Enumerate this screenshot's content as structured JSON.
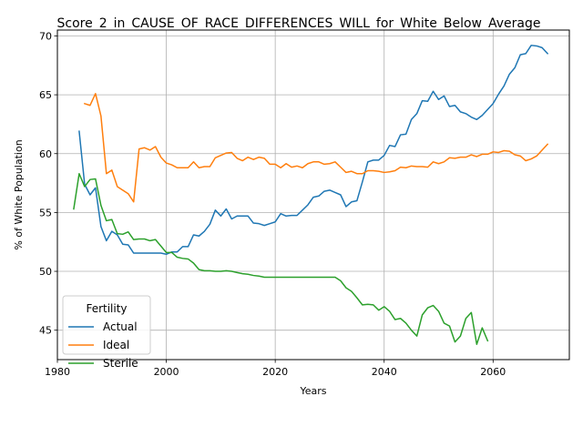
{
  "chart_data": {
    "type": "line",
    "title": "Score_2_in_CAUSE_OF_RACE_DIFFERENCES_WILL_for_White_Below_Average",
    "xlabel": "Years",
    "ylabel": "% of White Population",
    "xlim": [
      1980,
      2074
    ],
    "ylim": [
      42.5,
      70.5
    ],
    "xticks": [
      1980,
      2000,
      2020,
      2040,
      2060
    ],
    "yticks": [
      45,
      50,
      55,
      60,
      65,
      70
    ],
    "grid": true,
    "legend": {
      "title": "Fertility",
      "position": "lower-left"
    },
    "colors": {
      "Actual": "#1f77b4",
      "Ideal": "#ff7f0e",
      "Sterile": "#2ca02c"
    },
    "series": [
      {
        "name": "Actual",
        "x": [
          1984,
          1985,
          1986,
          1987,
          1988,
          1989,
          1990,
          1991,
          1992,
          1993,
          1994,
          1995,
          1996,
          1997,
          1998,
          1999,
          2000,
          2001,
          2002,
          2003,
          2004,
          2005,
          2006,
          2007,
          2008,
          2009,
          2010,
          2011,
          2012,
          2013,
          2014,
          2015,
          2016,
          2017,
          2018,
          2019,
          2020,
          2021,
          2022,
          2023,
          2024,
          2025,
          2026,
          2027,
          2028,
          2029,
          2030,
          2031,
          2032,
          2033,
          2034,
          2035,
          2036,
          2037,
          2038,
          2039,
          2040,
          2041,
          2042,
          2043,
          2044,
          2045,
          2046,
          2047,
          2048,
          2049,
          2050,
          2051,
          2052,
          2053,
          2054,
          2055,
          2056,
          2057,
          2058,
          2059,
          2060,
          2061,
          2062,
          2063,
          2064,
          2065,
          2066,
          2067,
          2068,
          2069,
          2070
        ],
        "y": [
          61.9,
          57.4,
          56.5,
          57.1,
          53.8,
          52.6,
          53.4,
          53.1,
          52.3,
          52.25,
          51.55,
          51.55,
          51.55,
          51.55,
          51.55,
          51.55,
          51.45,
          51.65,
          51.65,
          52.1,
          52.1,
          53.1,
          53.0,
          53.4,
          54.0,
          55.2,
          54.7,
          55.3,
          54.45,
          54.7,
          54.7,
          54.7,
          54.1,
          54.05,
          53.9,
          54.05,
          54.2,
          54.9,
          54.7,
          54.75,
          54.75,
          55.2,
          55.65,
          56.3,
          56.4,
          56.8,
          56.9,
          56.7,
          56.5,
          55.5,
          55.9,
          56.0,
          57.6,
          59.3,
          59.45,
          59.45,
          59.85,
          60.7,
          60.6,
          61.6,
          61.65,
          62.9,
          63.4,
          64.5,
          64.45,
          65.3,
          64.6,
          64.9,
          64.0,
          64.1,
          63.55,
          63.4,
          63.1,
          62.9,
          63.25,
          63.75,
          64.25,
          65.05,
          65.75,
          66.75,
          67.3,
          68.4,
          68.5,
          69.2,
          69.15,
          69.0,
          68.5
        ]
      },
      {
        "name": "Ideal",
        "x": [
          1985,
          1986,
          1987,
          1988,
          1989,
          1990,
          1991,
          1992,
          1993,
          1994,
          1995,
          1996,
          1997,
          1998,
          1999,
          2000,
          2001,
          2002,
          2003,
          2004,
          2005,
          2006,
          2007,
          2008,
          2009,
          2010,
          2011,
          2012,
          2013,
          2014,
          2015,
          2016,
          2017,
          2018,
          2019,
          2020,
          2021,
          2022,
          2023,
          2024,
          2025,
          2026,
          2027,
          2028,
          2029,
          2030,
          2031,
          2032,
          2033,
          2034,
          2035,
          2036,
          2037,
          2038,
          2039,
          2040,
          2041,
          2042,
          2043,
          2044,
          2045,
          2046,
          2047,
          2048,
          2049,
          2050,
          2051,
          2052,
          2053,
          2054,
          2055,
          2056,
          2057,
          2058,
          2059,
          2060,
          2061,
          2062,
          2063,
          2064,
          2065,
          2066,
          2067,
          2068,
          2069,
          2070
        ],
        "y": [
          64.25,
          64.1,
          65.1,
          63.2,
          58.3,
          58.6,
          57.2,
          56.9,
          56.6,
          55.9,
          60.4,
          60.5,
          60.3,
          60.6,
          59.7,
          59.2,
          59.05,
          58.8,
          58.8,
          58.8,
          59.3,
          58.8,
          58.9,
          58.9,
          59.65,
          59.85,
          60.05,
          60.1,
          59.6,
          59.4,
          59.7,
          59.5,
          59.7,
          59.6,
          59.1,
          59.1,
          58.8,
          59.15,
          58.85,
          58.95,
          58.8,
          59.15,
          59.3,
          59.3,
          59.1,
          59.15,
          59.3,
          58.85,
          58.4,
          58.5,
          58.3,
          58.3,
          58.55,
          58.55,
          58.5,
          58.4,
          58.45,
          58.55,
          58.85,
          58.8,
          58.95,
          58.9,
          58.9,
          58.85,
          59.3,
          59.15,
          59.3,
          59.65,
          59.6,
          59.7,
          59.7,
          59.9,
          59.75,
          59.95,
          59.95,
          60.15,
          60.1,
          60.25,
          60.2,
          59.9,
          59.8,
          59.4,
          59.55,
          59.8,
          60.3,
          60.8
        ]
      },
      {
        "name": "Sterile",
        "x": [
          1983,
          1984,
          1985,
          1986,
          1987,
          1988,
          1989,
          1990,
          1991,
          1992,
          1993,
          1994,
          1995,
          1996,
          1997,
          1998,
          1999,
          2000,
          2001,
          2002,
          2003,
          2004,
          2005,
          2006,
          2007,
          2008,
          2009,
          2010,
          2011,
          2012,
          2013,
          2014,
          2015,
          2016,
          2017,
          2018,
          2019,
          2020,
          2021,
          2022,
          2023,
          2024,
          2025,
          2026,
          2027,
          2028,
          2029,
          2030,
          2031,
          2032,
          2033,
          2034,
          2035,
          2036,
          2037,
          2038,
          2039,
          2040,
          2041,
          2042,
          2043,
          2044,
          2045,
          2046,
          2047,
          2048,
          2049,
          2050,
          2051,
          2052,
          2053,
          2054,
          2055,
          2056,
          2057,
          2058,
          2059
        ],
        "y": [
          55.3,
          58.3,
          57.2,
          57.8,
          57.85,
          55.6,
          54.3,
          54.4,
          53.2,
          53.15,
          53.35,
          52.7,
          52.75,
          52.75,
          52.6,
          52.7,
          52.15,
          51.6,
          51.6,
          51.2,
          51.1,
          51.05,
          50.7,
          50.15,
          50.05,
          50.05,
          50.0,
          50.0,
          50.05,
          50.0,
          49.9,
          49.8,
          49.75,
          49.65,
          49.6,
          49.5,
          49.5,
          49.5,
          49.5,
          49.5,
          49.5,
          49.5,
          49.5,
          49.5,
          49.5,
          49.5,
          49.5,
          49.5,
          49.5,
          49.2,
          48.6,
          48.3,
          47.75,
          47.15,
          47.2,
          47.15,
          46.7,
          47.0,
          46.6,
          45.9,
          46.0,
          45.6,
          45.0,
          44.5,
          46.3,
          46.9,
          47.1,
          46.6,
          45.6,
          45.35,
          44.0,
          44.5,
          46.0,
          46.5,
          43.8,
          45.2,
          44.1
        ]
      }
    ]
  }
}
